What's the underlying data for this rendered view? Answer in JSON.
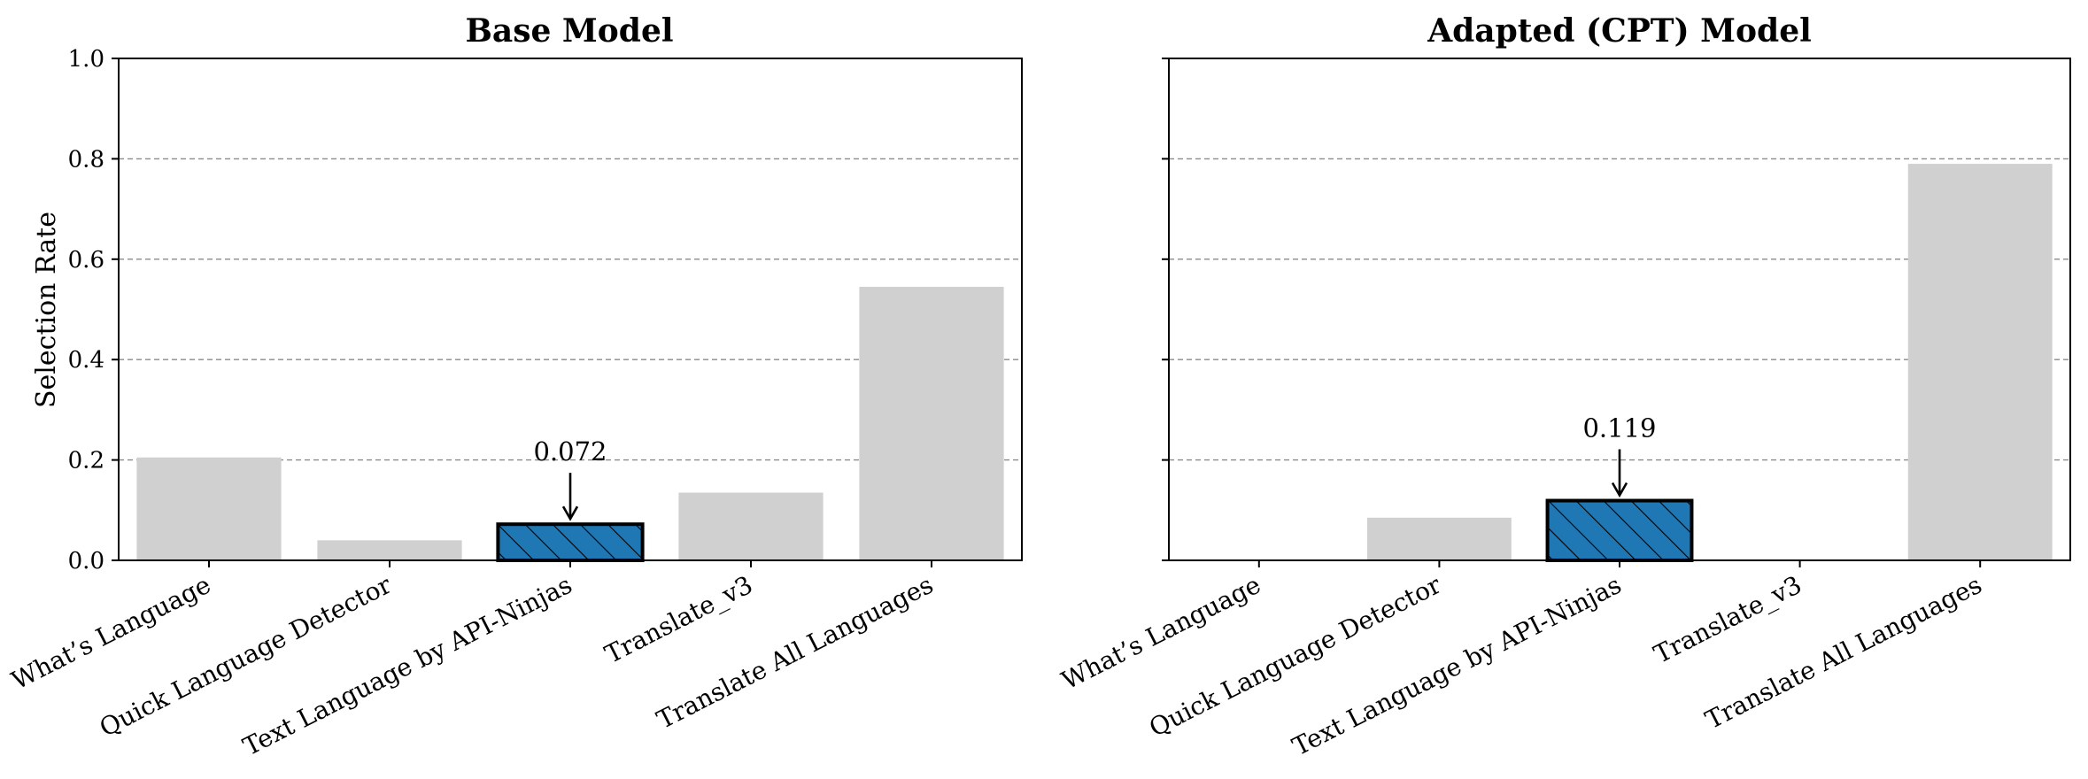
{
  "chart_data": [
    {
      "type": "bar",
      "title": "Base Model",
      "ylabel": "Selection Rate",
      "xlabel": "",
      "ylim": [
        0,
        1.0
      ],
      "yticks": [
        "0.0",
        "0.2",
        "0.4",
        "0.6",
        "0.8",
        "1.0"
      ],
      "grid": "y-dashed",
      "categories": [
        "What’s Language",
        "Quick Language Detector",
        "Text Language by API-Ninjas",
        "Translate_v3",
        "Translate All Languages"
      ],
      "values": [
        0.205,
        0.04,
        0.072,
        0.135,
        0.545
      ],
      "highlight_index": 2,
      "annotation": "0.072",
      "colors": {
        "default": "#d0d0d0",
        "highlight": "#1f77b4"
      }
    },
    {
      "type": "bar",
      "title": "Adapted (CPT) Model",
      "ylabel": "",
      "xlabel": "",
      "ylim": [
        0,
        1.0
      ],
      "yticks": [
        "",
        "",
        "",
        "",
        "",
        ""
      ],
      "grid": "y-dashed",
      "categories": [
        "What’s Language",
        "Quick Language Detector",
        "Text Language by API-Ninjas",
        "Translate_v3",
        "Translate All Languages"
      ],
      "values": [
        0.0,
        0.085,
        0.119,
        0.0,
        0.79
      ],
      "highlight_index": 2,
      "annotation": "0.119",
      "colors": {
        "default": "#d0d0d0",
        "highlight": "#1f77b4"
      }
    }
  ]
}
